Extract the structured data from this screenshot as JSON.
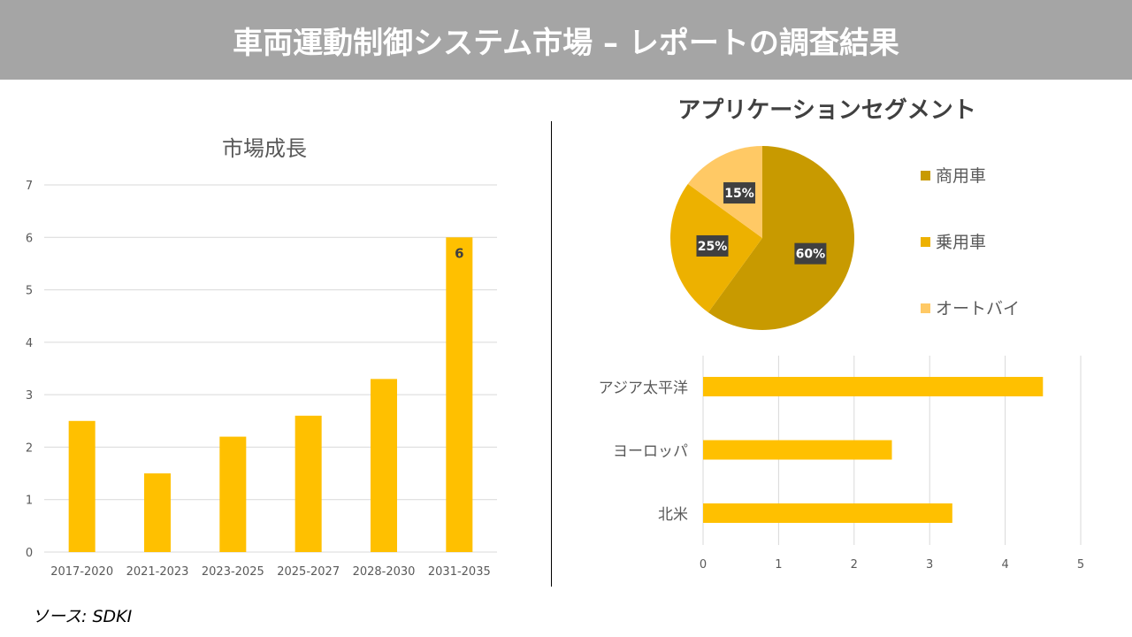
{
  "header": {
    "title": "車両運動制御システム市場 – レポートの調査結果"
  },
  "source": "ソース: SDKI",
  "colors": {
    "bar": "#FFC000",
    "header_bg": "#A5A5A5",
    "pie": [
      "#C89A00",
      "#EDB100",
      "#FFC965"
    ]
  },
  "chart_data": [
    {
      "type": "bar",
      "title": "市場成長",
      "categories": [
        "2017-2020",
        "2021-2023",
        "2023-2025",
        "2025-2027",
        "2028-2030",
        "2031-2035"
      ],
      "values": [
        2.5,
        1.5,
        2.2,
        2.6,
        3.3,
        6
      ],
      "ylim": [
        0,
        7
      ],
      "yticks": [
        "0",
        "1",
        "2",
        "3",
        "4",
        "5",
        "6",
        "7"
      ],
      "data_labels": {
        "5": "6"
      },
      "grid": true
    },
    {
      "type": "pie",
      "title": "アプリケーションセグメント",
      "labels": [
        "商用車",
        "乗用車",
        "オートバイ"
      ],
      "values": [
        60,
        25,
        15
      ],
      "data_labels": [
        "60%",
        "25%",
        "15%"
      ],
      "legend": "right"
    },
    {
      "type": "bar",
      "orientation": "horizontal",
      "categories": [
        "アジア太平洋",
        "ヨーロッパ",
        "北米"
      ],
      "values": [
        4.5,
        2.5,
        3.3
      ],
      "xlim": [
        0,
        5
      ],
      "xticks": [
        "0",
        "1",
        "2",
        "3",
        "4",
        "5"
      ],
      "grid": true
    }
  ]
}
